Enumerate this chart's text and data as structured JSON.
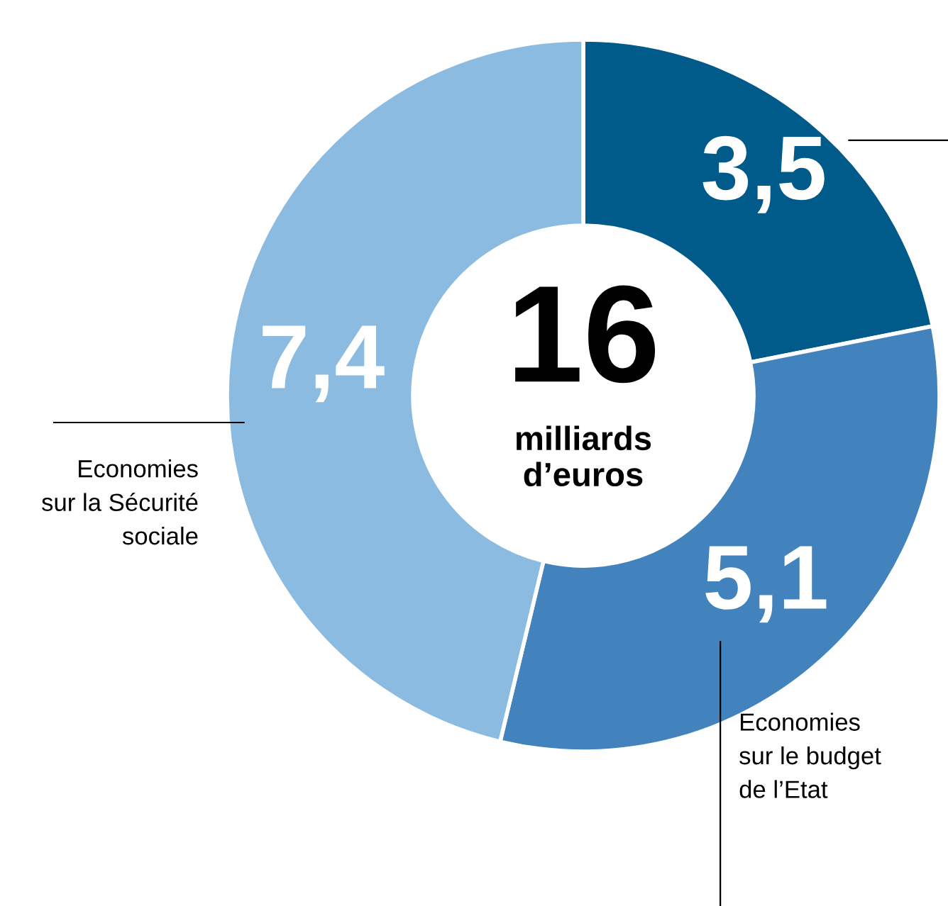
{
  "chart_data": {
    "type": "donut",
    "categories": [
      null,
      "Economies\nsur le budget\nde l’Etat",
      "Economies\nsur la Sécurité\nsociale"
    ],
    "values": [
      3.5,
      5.1,
      7.4
    ],
    "colors": [
      "#005b8a",
      "#4283bd",
      "#8bbbe0"
    ],
    "value_labels": [
      "3,5",
      "5,1",
      "7,4"
    ],
    "annotations": [
      "16",
      "milliards\nd’euros"
    ]
  }
}
